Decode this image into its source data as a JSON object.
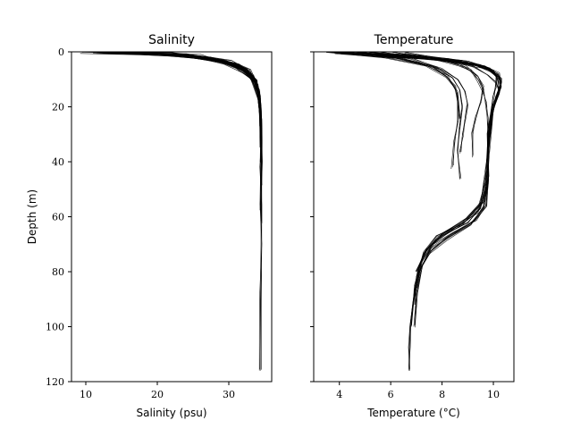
{
  "chart_data": [
    {
      "type": "line",
      "title": "Salinity",
      "xlabel": "Salinity (psu)",
      "ylabel": "Depth (m)",
      "xlim": [
        8,
        36
      ],
      "ylim": [
        120,
        0
      ],
      "y_inverted": true,
      "xticks": [
        10,
        20,
        30
      ],
      "yticks": [
        0,
        20,
        40,
        60,
        80,
        100,
        120
      ],
      "line_color": "#000000",
      "series_count": 40,
      "series": [
        {
          "x": [
            9.3,
            18,
            24,
            27.5,
            30,
            32.5,
            33.8,
            34.3,
            34.4,
            34.5,
            34.5,
            34.5,
            34.5,
            34.4,
            34.4
          ],
          "y": [
            0,
            0.5,
            1.2,
            2.5,
            4,
            7,
            11,
            16,
            22,
            30,
            42,
            55,
            70,
            90,
            116
          ]
        },
        {
          "x": [
            11,
            20,
            26,
            29,
            31.5,
            33.5,
            34.2,
            34.4,
            34.5,
            34.5,
            34.5
          ],
          "y": [
            0,
            0.6,
            1.5,
            3,
            5,
            9,
            14,
            20,
            30,
            45,
            62
          ]
        },
        {
          "x": [
            12.5,
            22,
            27.5,
            30.5,
            32.5,
            33.8,
            34.3,
            34.5,
            34.6,
            34.5
          ],
          "y": [
            0,
            0.8,
            2,
            3.8,
            6,
            10,
            16,
            25,
            40,
            58
          ]
        },
        {
          "x": [
            14,
            23,
            28,
            31,
            33,
            34,
            34.4,
            34.5,
            34.5
          ],
          "y": [
            0,
            1,
            2.5,
            4.5,
            7,
            12,
            19,
            30,
            48
          ]
        },
        {
          "x": [
            10,
            19,
            25,
            28.5,
            31,
            33.2,
            34.1,
            34.4,
            34.5
          ],
          "y": [
            0,
            0.7,
            1.8,
            3.5,
            6,
            10,
            17,
            26,
            40
          ]
        },
        {
          "x": [
            13,
            21,
            26.5,
            29.5,
            32,
            33.6,
            34.3,
            34.4,
            34.5
          ],
          "y": [
            0,
            0.9,
            2.2,
            4.2,
            7,
            11,
            18,
            28,
            44
          ]
        },
        {
          "x": [
            15,
            24,
            28.5,
            31.2,
            33.2,
            34.1,
            34.4,
            34.5
          ],
          "y": [
            0,
            1.2,
            3,
            5.2,
            8.5,
            13,
            21,
            35
          ]
        },
        {
          "x": [
            11.5,
            20.5,
            26,
            29.8,
            32.3,
            33.9,
            34.4,
            34.5
          ],
          "y": [
            0,
            0.8,
            2,
            4,
            6.5,
            11,
            19,
            32
          ]
        },
        {
          "x": [
            16,
            24.5,
            29,
            31.6,
            33.4,
            34.2,
            34.5
          ],
          "y": [
            0,
            1.4,
            3.5,
            6,
            9.5,
            15,
            24
          ]
        },
        {
          "x": [
            12,
            22.5,
            27,
            30.8,
            32.8,
            34,
            34.4
          ],
          "y": [
            0,
            1,
            2.6,
            4.8,
            8,
            13,
            22
          ]
        },
        {
          "x": [
            17,
            25,
            29.5,
            32,
            33.6,
            34.3,
            34.5
          ],
          "y": [
            0,
            1.6,
            4,
            7,
            11,
            17,
            27
          ]
        },
        {
          "x": [
            13.5,
            23,
            28,
            31.4,
            33.1,
            34.1,
            34.4
          ],
          "y": [
            0,
            1.1,
            2.8,
            5.5,
            9,
            15,
            25
          ]
        }
      ]
    },
    {
      "type": "line",
      "title": "Temperature",
      "xlabel": "Temperature (°C)",
      "xlim": [
        3,
        10.8
      ],
      "ylim": [
        120,
        0
      ],
      "y_inverted": true,
      "xticks": [
        4,
        6,
        8,
        10
      ],
      "yticks": [
        0,
        20,
        40,
        60,
        80,
        100,
        120
      ],
      "line_color": "#000000",
      "series_count": 40,
      "series": [
        {
          "x": [
            3.4,
            6,
            8,
            9.3,
            9.9,
            10.1,
            10.1,
            10.0,
            9.9,
            9.8,
            9.8,
            9.7,
            9.5,
            9,
            8,
            7.4,
            7.1,
            6.95,
            6.85,
            6.75,
            6.72,
            6.7
          ],
          "y": [
            0,
            1.5,
            3,
            5,
            7,
            9,
            12,
            16,
            22,
            30,
            40,
            50,
            57,
            62,
            67,
            72,
            78,
            85,
            92,
            100,
            108,
            116
          ]
        },
        {
          "x": [
            3.6,
            6.3,
            8.3,
            9.5,
            10.0,
            10.2,
            10.2,
            10.0,
            9.9,
            9.8,
            9.8,
            9.7,
            9.3,
            8.4,
            7.6,
            7.2,
            7.0,
            6.9
          ],
          "y": [
            0,
            1.4,
            3,
            5,
            7,
            10,
            14,
            19,
            26,
            35,
            46,
            56,
            61,
            66,
            71,
            78,
            88,
            100
          ]
        },
        {
          "x": [
            4,
            6.6,
            8.6,
            9.7,
            10.2,
            10.3,
            10.2,
            10.0,
            9.9,
            9.8,
            9.8,
            9.6,
            9.1,
            8.2,
            7.5,
            7.1,
            6.9,
            6.8
          ],
          "y": [
            0,
            1.6,
            3.2,
            5.5,
            8,
            11,
            15,
            21,
            29,
            38,
            48,
            57,
            63,
            68,
            73,
            80,
            90,
            100
          ]
        },
        {
          "x": [
            4.5,
            7,
            8.8,
            9.7,
            10.2,
            10.3,
            10.1,
            9.9,
            9.8,
            9.8,
            9.6,
            8.8,
            7.8,
            7.3,
            7.0,
            6.9
          ],
          "y": [
            0,
            1.8,
            3.6,
            6,
            9,
            12,
            17,
            24,
            34,
            45,
            55,
            62,
            67,
            73,
            82,
            92
          ]
        },
        {
          "x": [
            5,
            7.3,
            9,
            9.9,
            10.3,
            10.3,
            10.1,
            9.9,
            9.8,
            9.7,
            9.4,
            8.6,
            7.7,
            7.2,
            7.0
          ],
          "y": [
            0,
            2,
            4,
            6.5,
            9.5,
            13,
            18,
            25,
            35,
            47,
            58,
            64,
            69,
            76,
            86
          ]
        },
        {
          "x": [
            5.5,
            7.5,
            8.6,
            9.1,
            9.4,
            9.6,
            9.7,
            9.8,
            9.8,
            9.7,
            9.5,
            8.9,
            8.0,
            7.4,
            7.0
          ],
          "y": [
            0,
            2.2,
            4.5,
            7,
            10,
            14,
            18,
            24,
            33,
            44,
            55,
            61,
            66,
            72,
            80
          ]
        },
        {
          "x": [
            3.8,
            6.2,
            7.6,
            8.2,
            8.5,
            8.6,
            8.6,
            8.5,
            8.4
          ],
          "y": [
            0,
            2,
            5,
            9,
            13,
            18,
            25,
            33,
            42
          ]
        },
        {
          "x": [
            4.2,
            6.4,
            7.8,
            8.4,
            8.7,
            8.8,
            8.7,
            8.6,
            8.7
          ],
          "y": [
            0,
            2.2,
            5.5,
            9.5,
            14,
            20,
            28,
            36,
            46
          ]
        },
        {
          "x": [
            4.8,
            6.8,
            8.0,
            8.6,
            8.9,
            9.0,
            8.9,
            8.8,
            8.7
          ],
          "y": [
            0,
            2.4,
            6,
            10,
            14.5,
            19,
            24,
            30,
            37
          ]
        },
        {
          "x": [
            6,
            7.8,
            8.9,
            9.4,
            9.6,
            9.5,
            9.3,
            9.2,
            9.2
          ],
          "y": [
            0,
            2.6,
            5.5,
            9,
            13,
            18,
            24,
            30,
            38
          ]
        },
        {
          "x": [
            3.5,
            5.8,
            7.4,
            8.2,
            8.6,
            8.7
          ],
          "y": [
            0,
            2,
            5,
            9,
            15,
            24
          ]
        },
        {
          "x": [
            6.5,
            8.2,
            9.2,
            9.8,
            10.1,
            10.2,
            10.0,
            9.9,
            9.8
          ],
          "y": [
            0,
            2.8,
            5.5,
            8.5,
            11,
            14,
            19,
            26,
            34
          ]
        }
      ]
    }
  ]
}
